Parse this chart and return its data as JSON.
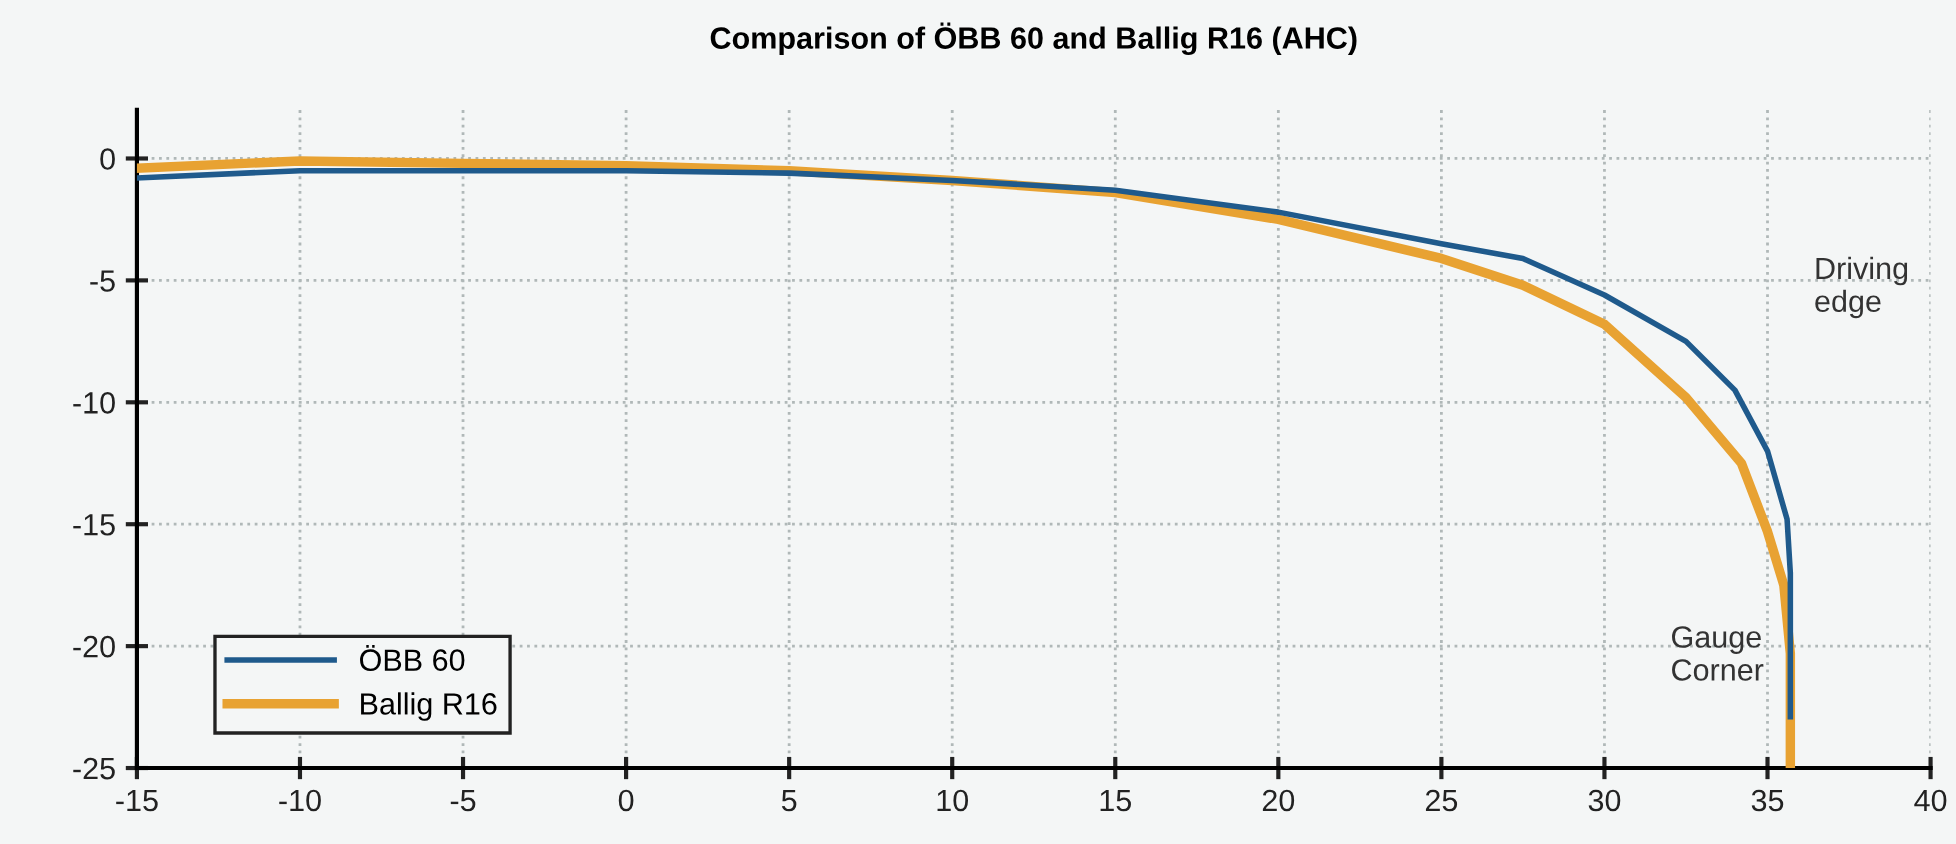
{
  "chart_data": {
    "type": "line",
    "title": "Comparison of ÖBB 60 and Ballig R16 (AHC)",
    "xlim": [
      -15,
      40
    ],
    "xticks": [
      -15,
      -10,
      -5,
      0,
      5,
      10,
      15,
      20,
      25,
      30,
      35,
      40
    ],
    "ylim": [
      -25,
      2
    ],
    "yticks": [
      -25,
      -20,
      -15,
      -10,
      -5,
      0
    ],
    "grid": true,
    "legend": "bottom left",
    "line_style": "solid",
    "marker": "none",
    "series": [
      {
        "name": "ÖBB 60",
        "color": "#1f5a8c",
        "x": [
          -15,
          -10,
          -5,
          0,
          5,
          10,
          15,
          20,
          25,
          27.5,
          30,
          32.5,
          34,
          35,
          35.6,
          35.7,
          35.7
        ],
        "values": [
          -0.8,
          -0.5,
          -0.5,
          -0.5,
          -0.6,
          -0.9,
          -1.3,
          -2.2,
          -3.5,
          -4.1,
          -5.6,
          -7.5,
          -9.5,
          -12,
          -14.8,
          -17,
          -22.9
        ]
      },
      {
        "name": "Ballig R16",
        "color": "#e8a232",
        "x": [
          -15,
          -10,
          -5,
          0,
          5,
          10,
          15,
          20,
          25,
          27.5,
          30,
          32.5,
          34.2,
          35,
          35.5,
          35.7,
          35.7
        ],
        "values": [
          -0.4,
          -0.1,
          -0.2,
          -0.3,
          -0.5,
          -0.9,
          -1.4,
          -2.5,
          -4.1,
          -5.2,
          -6.8,
          -9.8,
          -12.5,
          -15.3,
          -17.5,
          -20.3,
          -25
        ]
      }
    ],
    "annotations": [
      "Driving\nedge",
      "Gauge\nCorner"
    ]
  }
}
